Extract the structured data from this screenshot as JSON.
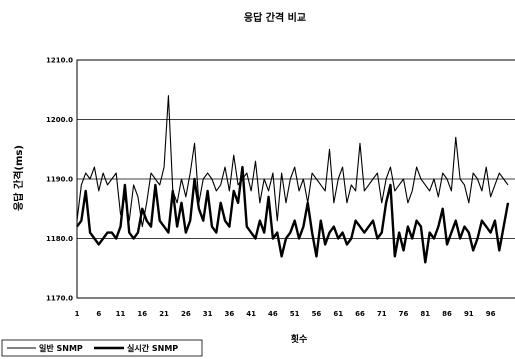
{
  "chart_data": {
    "type": "line",
    "title": "응답 간격 비교",
    "xlabel": "횟수",
    "ylabel": "응답 간격(ms)",
    "ylim": [
      1170,
      1210
    ],
    "yticks": [
      1170.0,
      1180.0,
      1190.0,
      1200.0,
      1210.0
    ],
    "xticks": [
      "1",
      "6",
      "11",
      "16",
      "21",
      "26",
      "31",
      "36",
      "41",
      "46",
      "51",
      "56",
      "61",
      "66",
      "71",
      "76",
      "81",
      "86",
      "91",
      "96"
    ],
    "x_range": [
      1,
      100
    ],
    "grid": true,
    "legend_position": "bottom-left",
    "series": [
      {
        "name": "일반 SNMP",
        "line_width": "thin",
        "values": [
          1183,
          1189,
          1191,
          1190,
          1192,
          1188,
          1191,
          1189,
          1190,
          1191,
          1184,
          1187,
          1183,
          1189,
          1187,
          1182,
          1186,
          1191,
          1190,
          1189,
          1192,
          1204,
          1188,
          1186,
          1190,
          1187,
          1191,
          1196,
          1186,
          1190,
          1191,
          1190,
          1188,
          1189,
          1192,
          1188,
          1194,
          1189,
          1190,
          1191,
          1188,
          1193,
          1186,
          1190,
          1188,
          1191,
          1183,
          1191,
          1186,
          1190,
          1192,
          1188,
          1190,
          1186,
          1191,
          1190,
          1189,
          1188,
          1195,
          1186,
          1190,
          1192,
          1186,
          1189,
          1188,
          1196,
          1188,
          1189,
          1190,
          1191,
          1186,
          1190,
          1192,
          1188,
          1189,
          1190,
          1186,
          1188,
          1192,
          1190,
          1189,
          1188,
          1190,
          1187,
          1191,
          1190,
          1188,
          1197,
          1190,
          1189,
          1186,
          1191,
          1190,
          1188,
          1192,
          1187,
          1189,
          1191,
          1190,
          1189
        ]
      },
      {
        "name": "실시간 SNMP",
        "line_width": "thick",
        "values": [
          1182,
          1183,
          1188,
          1181,
          1180,
          1179,
          1180,
          1181,
          1181,
          1180,
          1182,
          1189,
          1181,
          1180,
          1181,
          1185,
          1183,
          1182,
          1189,
          1183,
          1182,
          1181,
          1188,
          1182,
          1186,
          1181,
          1183,
          1190,
          1185,
          1183,
          1188,
          1182,
          1181,
          1186,
          1183,
          1182,
          1188,
          1186,
          1192,
          1182,
          1181,
          1180,
          1183,
          1181,
          1187,
          1180,
          1181,
          1177,
          1180,
          1181,
          1183,
          1180,
          1182,
          1186,
          1181,
          1177,
          1183,
          1179,
          1181,
          1182,
          1180,
          1181,
          1179,
          1180,
          1183,
          1182,
          1181,
          1182,
          1183,
          1180,
          1181,
          1186,
          1189,
          1177,
          1181,
          1178,
          1182,
          1180,
          1183,
          1182,
          1176,
          1181,
          1180,
          1182,
          1185,
          1179,
          1181,
          1183,
          1180,
          1182,
          1181,
          1178,
          1180,
          1183,
          1182,
          1181,
          1183,
          1178,
          1182,
          1186
        ]
      }
    ]
  }
}
